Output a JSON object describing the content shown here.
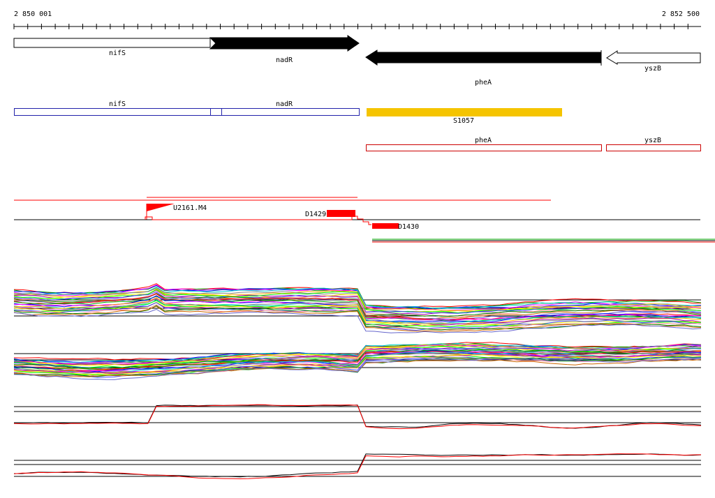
{
  "ruler": {
    "start_label": "2 850 001",
    "end_label": "2 852 500"
  },
  "gene_track": {
    "genes": [
      {
        "name": "nifS",
        "strand": "+",
        "fill": "#ffffff"
      },
      {
        "name": "nadR",
        "strand": "+",
        "fill": "#000000"
      },
      {
        "name": "pheA",
        "strand": "-",
        "fill": "#000000"
      },
      {
        "name": "yszB",
        "strand": "-",
        "fill": "#ffffff"
      }
    ]
  },
  "blue_track": {
    "color": "#2222aa",
    "labels": [
      "nifS",
      "nadR"
    ]
  },
  "segment_track": {
    "label": "S1057",
    "color": "#f5c400"
  },
  "red_track": {
    "color": "#cc0000",
    "labels": [
      "pheA",
      "yszB"
    ]
  },
  "feature_track": {
    "labels": {
      "u": "U2161.M4",
      "d1": "D1429",
      "d2": "D1430"
    },
    "color": "#ff0000"
  },
  "colors": {
    "black": "#000000",
    "red": "#ff0000"
  }
}
